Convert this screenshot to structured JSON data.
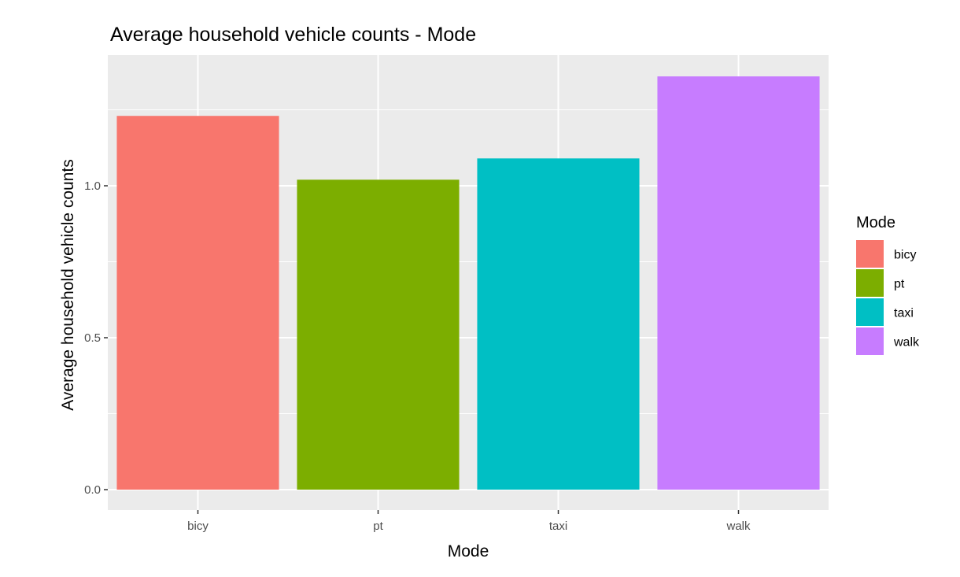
{
  "chart_data": {
    "type": "bar",
    "title": "Average household vehicle counts - Mode",
    "xlabel": "Mode",
    "ylabel": "Average household vehicle counts",
    "categories": [
      "bicy",
      "pt",
      "taxi",
      "walk"
    ],
    "values": [
      1.23,
      1.02,
      1.09,
      1.36
    ],
    "colors": [
      "#F8766D",
      "#7CAE00",
      "#00BFC4",
      "#C77CFF"
    ],
    "ylim": [
      0,
      1.42
    ],
    "yticks": [
      0,
      0.5,
      1
    ],
    "ytick_labels": [
      "0.0",
      "0.5",
      "1.0"
    ],
    "grid": true,
    "panel_background": "#EBEBEB",
    "grid_color": "#FFFFFF",
    "legend": {
      "title": "Mode",
      "position": "right",
      "entries": [
        "bicy",
        "pt",
        "taxi",
        "walk"
      ]
    }
  }
}
